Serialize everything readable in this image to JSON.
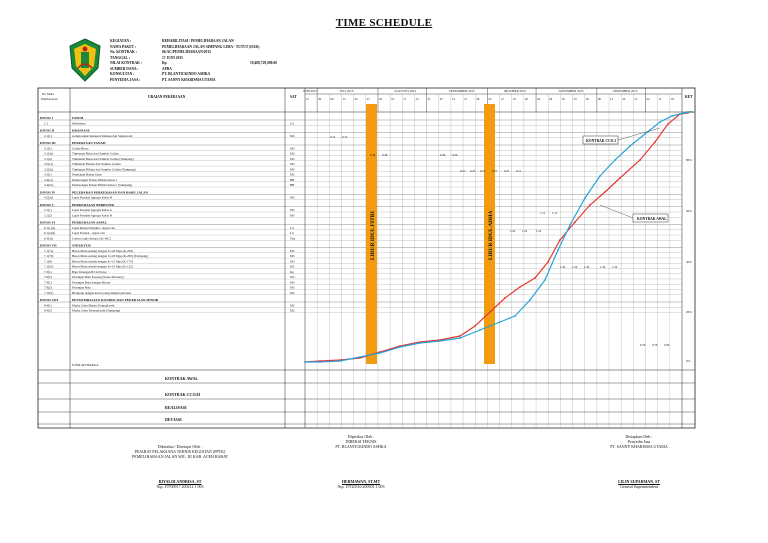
{
  "title": "TIME SCHEDULE",
  "project": {
    "rows": [
      {
        "label": "KEGIATAN",
        "value": "REHABILITASI / PEMELIHARAAN JALAN"
      },
      {
        "label": "NAMA PAKET",
        "value": "PEMELIHARAAN JALAN SIMPANG LIMA - TUTUT (DAK)"
      },
      {
        "label": "No. KONTRAK",
        "value": "06/AC/PEMELIHARAAN/2015"
      },
      {
        "label": "TANGGAL",
        "value": "17 JUNI 2015"
      },
      {
        "label": "NILAI KONTRAK",
        "value": "Rp"
      },
      {
        "label": "SUMBER DANA",
        "value": "APBA"
      },
      {
        "label": "KONSULTAN",
        "value": "PT. BLANTICKINDO ASHKA"
      },
      {
        "label": "PENYEDIA JASA",
        "value": "PT. SANNY KHARISMA UTAMA"
      }
    ],
    "contract_value": "10,488,729,000.00"
  },
  "table": {
    "col_no": "No Mata Pembayaran",
    "col_uraian": "URAIAN PEKERJAAN",
    "col_sat": "SAT",
    "col_ket": "KET",
    "months": [
      "JUNI 2015",
      "JULI 2015",
      "AGUSTUS 2015",
      "SEPTEMBER 2015",
      "OKTOBER 2015",
      "NOVEMBER 2015",
      "DESEMBER 2015"
    ],
    "days": [
      "27",
      "29",
      "06",
      "13",
      "20",
      "27",
      "03",
      "10",
      "17",
      "24",
      "31",
      "07",
      "14",
      "21",
      "28",
      "05",
      "12",
      "19",
      "26",
      "02",
      "09",
      "16",
      "23",
      "30",
      "06",
      "13",
      "20",
      "27",
      "04",
      "11",
      "18"
    ],
    "sections": [
      {
        "div": "DIVISI 1",
        "title": "UMUM",
        "items": [
          {
            "no": "1.2",
            "name": "Mobilisasi",
            "sat": "LS"
          }
        ]
      },
      {
        "div": "DIVISI II",
        "title": "DRAINASE",
        "items": [
          {
            "no": "2.1(1)",
            "name": "Galian untuk Selokan Drainase dan Saluran Air",
            "sat": "M3"
          }
        ]
      },
      {
        "div": "DIVISI III",
        "title": "PEKERJAAN TANAH",
        "items": [
          {
            "no": "3.1(1)",
            "name": "Galian Biasa",
            "sat": "M3"
          },
          {
            "no": "3.1(3a)",
            "name": "Timbunan Biasa dari Sumber Galian",
            "sat": "M3"
          },
          {
            "no": "3.1(4)",
            "name": "Timbunan Biasa dari Sumber Galian (Tumpang)",
            "sat": "M3"
          },
          {
            "no": "3.2(1a)",
            "name": "Timbunan Pilihan dari Sumber Galian",
            "sat": "M3"
          },
          {
            "no": "3.2(2a)",
            "name": "Timbunan Pilihan dari Sumber Galian (Tumpang)",
            "sat": "M3"
          },
          {
            "no": "3.3(1)",
            "name": "Penyiapan Badan Jalan",
            "sat": "M2"
          },
          {
            "no": "3.4(1a)",
            "name": "Pemotongan Pohon Pilihan Kelas 1",
            "sat": "BH"
          },
          {
            "no": "3.4(1b)",
            "name": "Pemotongan Pohon Pilihan Kelas 2 (Tumpang)",
            "sat": "BH"
          }
        ]
      },
      {
        "div": "DIVISI IV",
        "title": "PELEBARAN PERKERASAN DAN BAHU JALAN",
        "items": [
          {
            "no": "4.2(2a)",
            "name": "Lapis Pondasi Agregat Kelas B",
            "sat": "M3"
          }
        ]
      },
      {
        "div": "DIVISI V",
        "title": "PERKERASAN BERBUTIR",
        "items": [
          {
            "no": "5.1(1)",
            "name": "Lapis Pondasi Agregat Kelas A",
            "sat": "M3"
          },
          {
            "no": "5.1(2)",
            "name": "Lapis Pondasi Agregat Kelas B",
            "sat": "M3"
          }
        ]
      },
      {
        "div": "DIVISI VI",
        "title": "PERKERASAN ASPAL",
        "items": [
          {
            "no": "6.1(1)(a)",
            "name": "Lapis Resap Pengikat - Aspal cair",
            "sat": "Ltr"
          },
          {
            "no": "6.1(2)(a)",
            "name": "Lapis Perekat - Aspal cair",
            "sat": "Ltr"
          },
          {
            "no": "6.3(5a)",
            "name": "Laston Lapis Antara (AC-BC)",
            "sat": "Ton"
          }
        ]
      },
      {
        "div": "DIVISI VII",
        "title": "STRUKTUR",
        "items": [
          {
            "no": "7.1(7)a",
            "name": "Beton Mutu sedang dengan fc=20 Mpa (K-250)",
            "sat": "M3"
          },
          {
            "no": "7.1(7)b",
            "name": "Beton Mutu sedang dengan fc=20 Mpa (K-250) (Tumpang)",
            "sat": "M3"
          },
          {
            "no": "7.1(8)",
            "name": "Beton Mutu rendah dengan fc=15 Mpa (K-175)",
            "sat": "M3"
          },
          {
            "no": "7.1(10)",
            "name": "Beton Mutu rendah dengan fc=10 Mpa (K-125)",
            "sat": "M3"
          },
          {
            "no": "7.3(1)",
            "name": "Baja Tulangan BJ 24 Polos",
            "sat": "Kg"
          },
          {
            "no": "7.6(5)",
            "name": "Pasangan Batu Kosong (Stone Masonry)",
            "sat": "M3"
          },
          {
            "no": "7.9(1)",
            "name": "Pasangan Batu dengan Mortar",
            "sat": "M3"
          },
          {
            "no": "7.9(2)",
            "name": "Pasangan Bata",
            "sat": "M3"
          },
          {
            "no": "7.10(1)",
            "name": "Bronjong dengan kawat yang dilapisi galvanis",
            "sat": "M3"
          }
        ]
      },
      {
        "div": "DIVISI VIII",
        "title": "PENGEMBALIAN KONDISI DAN PEKERJAAN MINOR",
        "items": [
          {
            "no": "8.4(1)",
            "name": "Marka Jalan Bukan Termoplastik",
            "sat": "M2"
          },
          {
            "no": "8.4(2)",
            "name": "Marka Jalan Termoplastik (Tumpang)",
            "sat": "M2"
          }
        ]
      }
    ],
    "total_label": "JUMLAH HARGA",
    "summary_rows": [
      "KONTRAK AWAL",
      "KONTRAK CCO.01",
      "REALISASI",
      "DEVIASI"
    ]
  },
  "holidays": [
    "LIBUR IDUL FITRI",
    "LIBUR IDUL ADHA"
  ],
  "callouts": [
    "KONTRAK CCO.1",
    "KONTRAK AWAL"
  ],
  "pct_ticks": [
    "100%",
    "80%",
    "60%",
    "40%",
    "20%",
    "0%"
  ],
  "cell_values": [
    "0.12",
    "0.12",
    "0.36",
    "0.36",
    "0.36",
    "0.36",
    "0.27",
    "0.27",
    "0.27",
    "0.27",
    "0.27",
    "0.11",
    "1.11",
    "1.11",
    "1.22",
    "1.22",
    "1.22",
    "1.59",
    "1.59",
    "1.59",
    "1.59",
    "1.59",
    "0.76",
    "0.76",
    "0.96"
  ],
  "signatures": [
    {
      "role1": "Diketahui / Disetujui Oleh :",
      "role2": "PEJABAT PELAKSANA TEKNIS KEGIATAN (PPTK)",
      "role3": "PEMELIHARAAN JALAN WIL. III KAB. ACEH BARAT",
      "name": "RIYALDI ANDRISA, ST",
      "nip": "Nip. 19700917 200212 1 003"
    },
    {
      "role1": "Diperiksa Oleh :",
      "role2": "DIREKSI TEKNIS",
      "role3": "PT. BLANTICKINDO ASHKA",
      "name": "HERMAWAN, ST.MT",
      "nip": "Nip. 19720316 200501 1 003"
    },
    {
      "role1": "Disiapkan Oleh :",
      "role2": "Penyedia Jasa",
      "role3": "PT. SANNY KHARISMA UTAMA",
      "name": "LILIN SUPARMAN, ST",
      "nip": "General Superintendent"
    }
  ],
  "colors": {
    "plan_line": "#e53935",
    "cco_line": "#29a3d6",
    "holiday_bar": "#f39c12",
    "grid": "#222222"
  }
}
